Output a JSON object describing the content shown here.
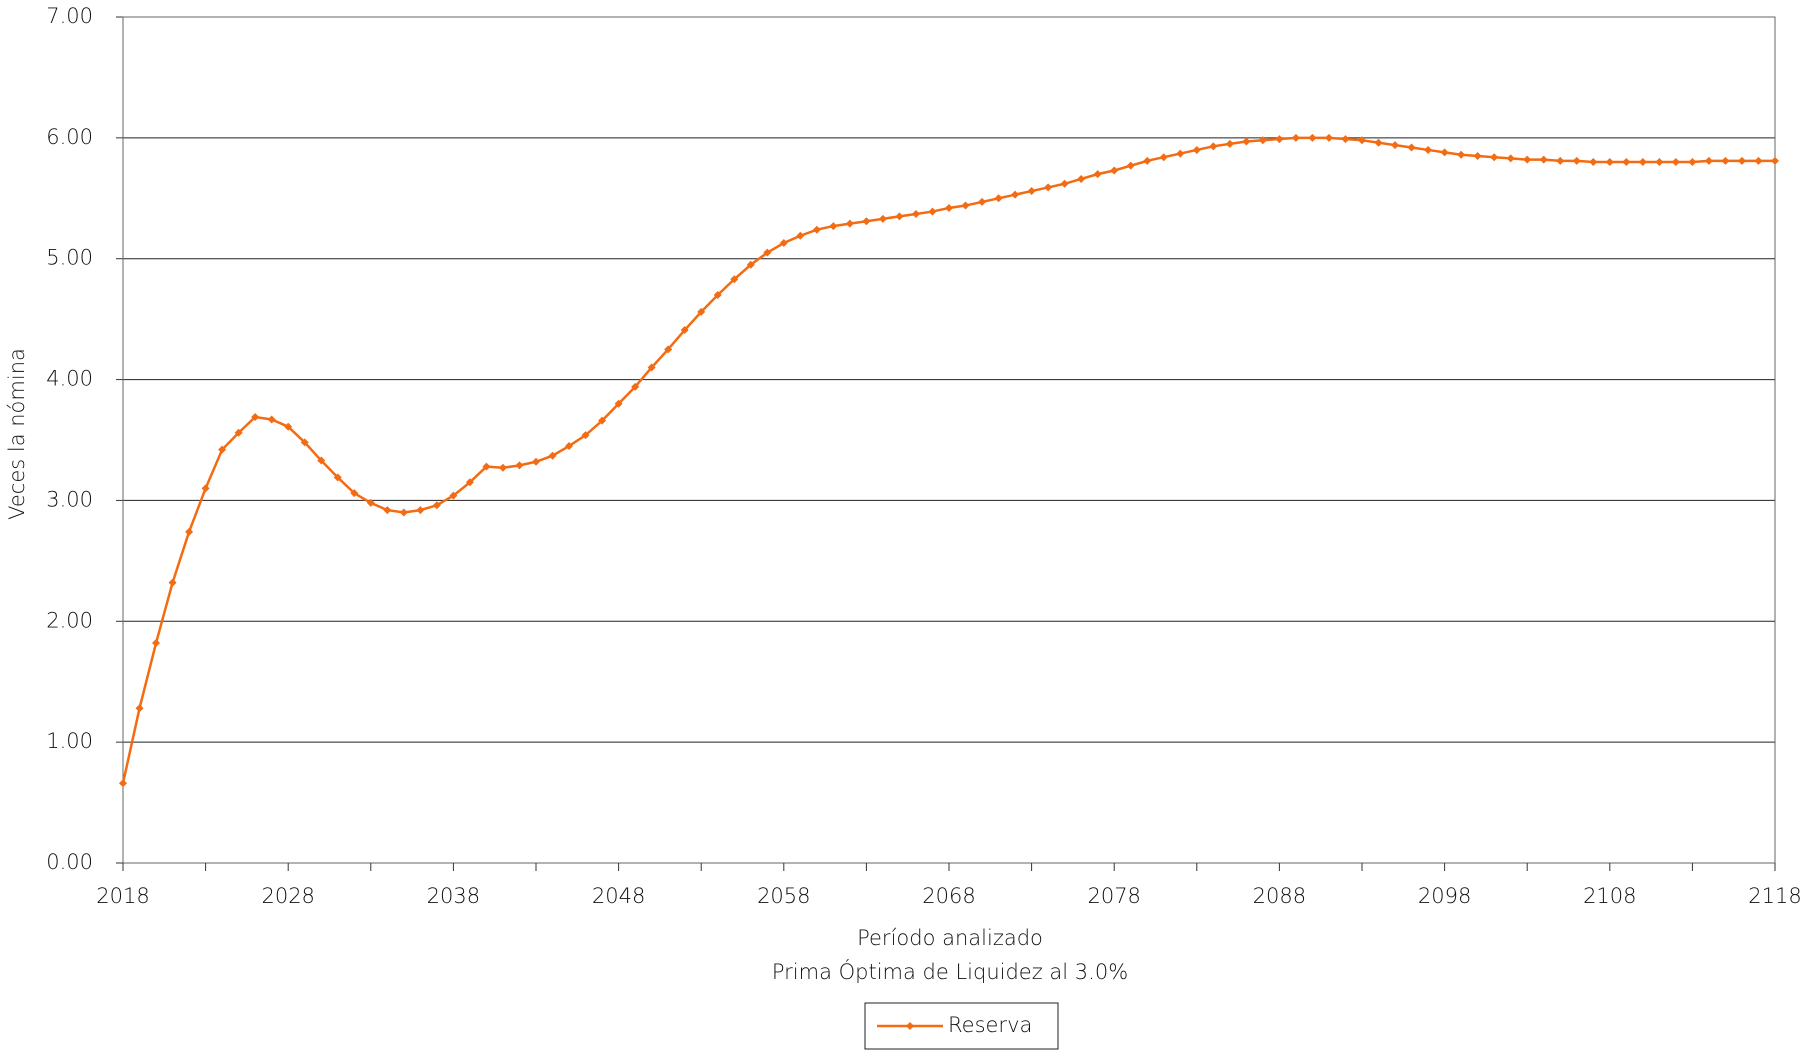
{
  "chart_data": {
    "type": "line",
    "xlabel": "Período analizado",
    "subtitle": "Prima Óptima de Liquidez al 3.0%",
    "ylabel": "Veces la nómina",
    "x": [
      2018,
      2019,
      2020,
      2021,
      2022,
      2023,
      2024,
      2025,
      2026,
      2027,
      2028,
      2029,
      2030,
      2031,
      2032,
      2033,
      2034,
      2035,
      2036,
      2037,
      2038,
      2039,
      2040,
      2041,
      2042,
      2043,
      2044,
      2045,
      2046,
      2047,
      2048,
      2049,
      2050,
      2051,
      2052,
      2053,
      2054,
      2055,
      2056,
      2057,
      2058,
      2059,
      2060,
      2061,
      2062,
      2063,
      2064,
      2065,
      2066,
      2067,
      2068,
      2069,
      2070,
      2071,
      2072,
      2073,
      2074,
      2075,
      2076,
      2077,
      2078,
      2079,
      2080,
      2081,
      2082,
      2083,
      2084,
      2085,
      2086,
      2087,
      2088,
      2089,
      2090,
      2091,
      2092,
      2093,
      2094,
      2095,
      2096,
      2097,
      2098,
      2099,
      2100,
      2101,
      2102,
      2103,
      2104,
      2105,
      2106,
      2107,
      2108,
      2109,
      2110,
      2111,
      2112,
      2113,
      2114,
      2115,
      2116,
      2117,
      2118
    ],
    "series": [
      {
        "name": "Reserva",
        "color": "#f36b12",
        "values": [
          0.66,
          1.28,
          1.82,
          2.32,
          2.74,
          3.1,
          3.42,
          3.56,
          3.69,
          3.67,
          3.61,
          3.48,
          3.33,
          3.19,
          3.06,
          2.98,
          2.92,
          2.9,
          2.92,
          2.96,
          3.04,
          3.15,
          3.28,
          3.27,
          3.29,
          3.32,
          3.37,
          3.45,
          3.54,
          3.66,
          3.8,
          3.94,
          4.1,
          4.25,
          4.41,
          4.56,
          4.7,
          4.83,
          4.95,
          5.05,
          5.13,
          5.19,
          5.24,
          5.27,
          5.29,
          5.31,
          5.33,
          5.35,
          5.37,
          5.39,
          5.42,
          5.44,
          5.47,
          5.5,
          5.53,
          5.56,
          5.59,
          5.62,
          5.66,
          5.7,
          5.73,
          5.77,
          5.81,
          5.84,
          5.87,
          5.9,
          5.93,
          5.95,
          5.97,
          5.98,
          5.99,
          6.0,
          6.0,
          6.0,
          5.99,
          5.98,
          5.96,
          5.94,
          5.92,
          5.9,
          5.88,
          5.86,
          5.85,
          5.84,
          5.83,
          5.82,
          5.82,
          5.81,
          5.81,
          5.8,
          5.8,
          5.8,
          5.8,
          5.8,
          5.8,
          5.8,
          5.81,
          5.81,
          5.81,
          5.81,
          5.81
        ]
      }
    ],
    "xlim": [
      2018,
      2118
    ],
    "xticks": [
      2018,
      2028,
      2038,
      2048,
      2058,
      2068,
      2078,
      2088,
      2098,
      2108,
      2118
    ],
    "ylim": [
      0,
      7
    ],
    "yticks": [
      {
        "value": 0,
        "label": "0.00"
      },
      {
        "value": 1,
        "label": "1.00"
      },
      {
        "value": 2,
        "label": "2.00"
      },
      {
        "value": 3,
        "label": "3.00"
      },
      {
        "value": 4,
        "label": "4.00"
      },
      {
        "value": 5,
        "label": "5.00"
      },
      {
        "value": 6,
        "label": "6.00"
      },
      {
        "value": 7,
        "label": "7.00"
      }
    ],
    "grid": true
  }
}
